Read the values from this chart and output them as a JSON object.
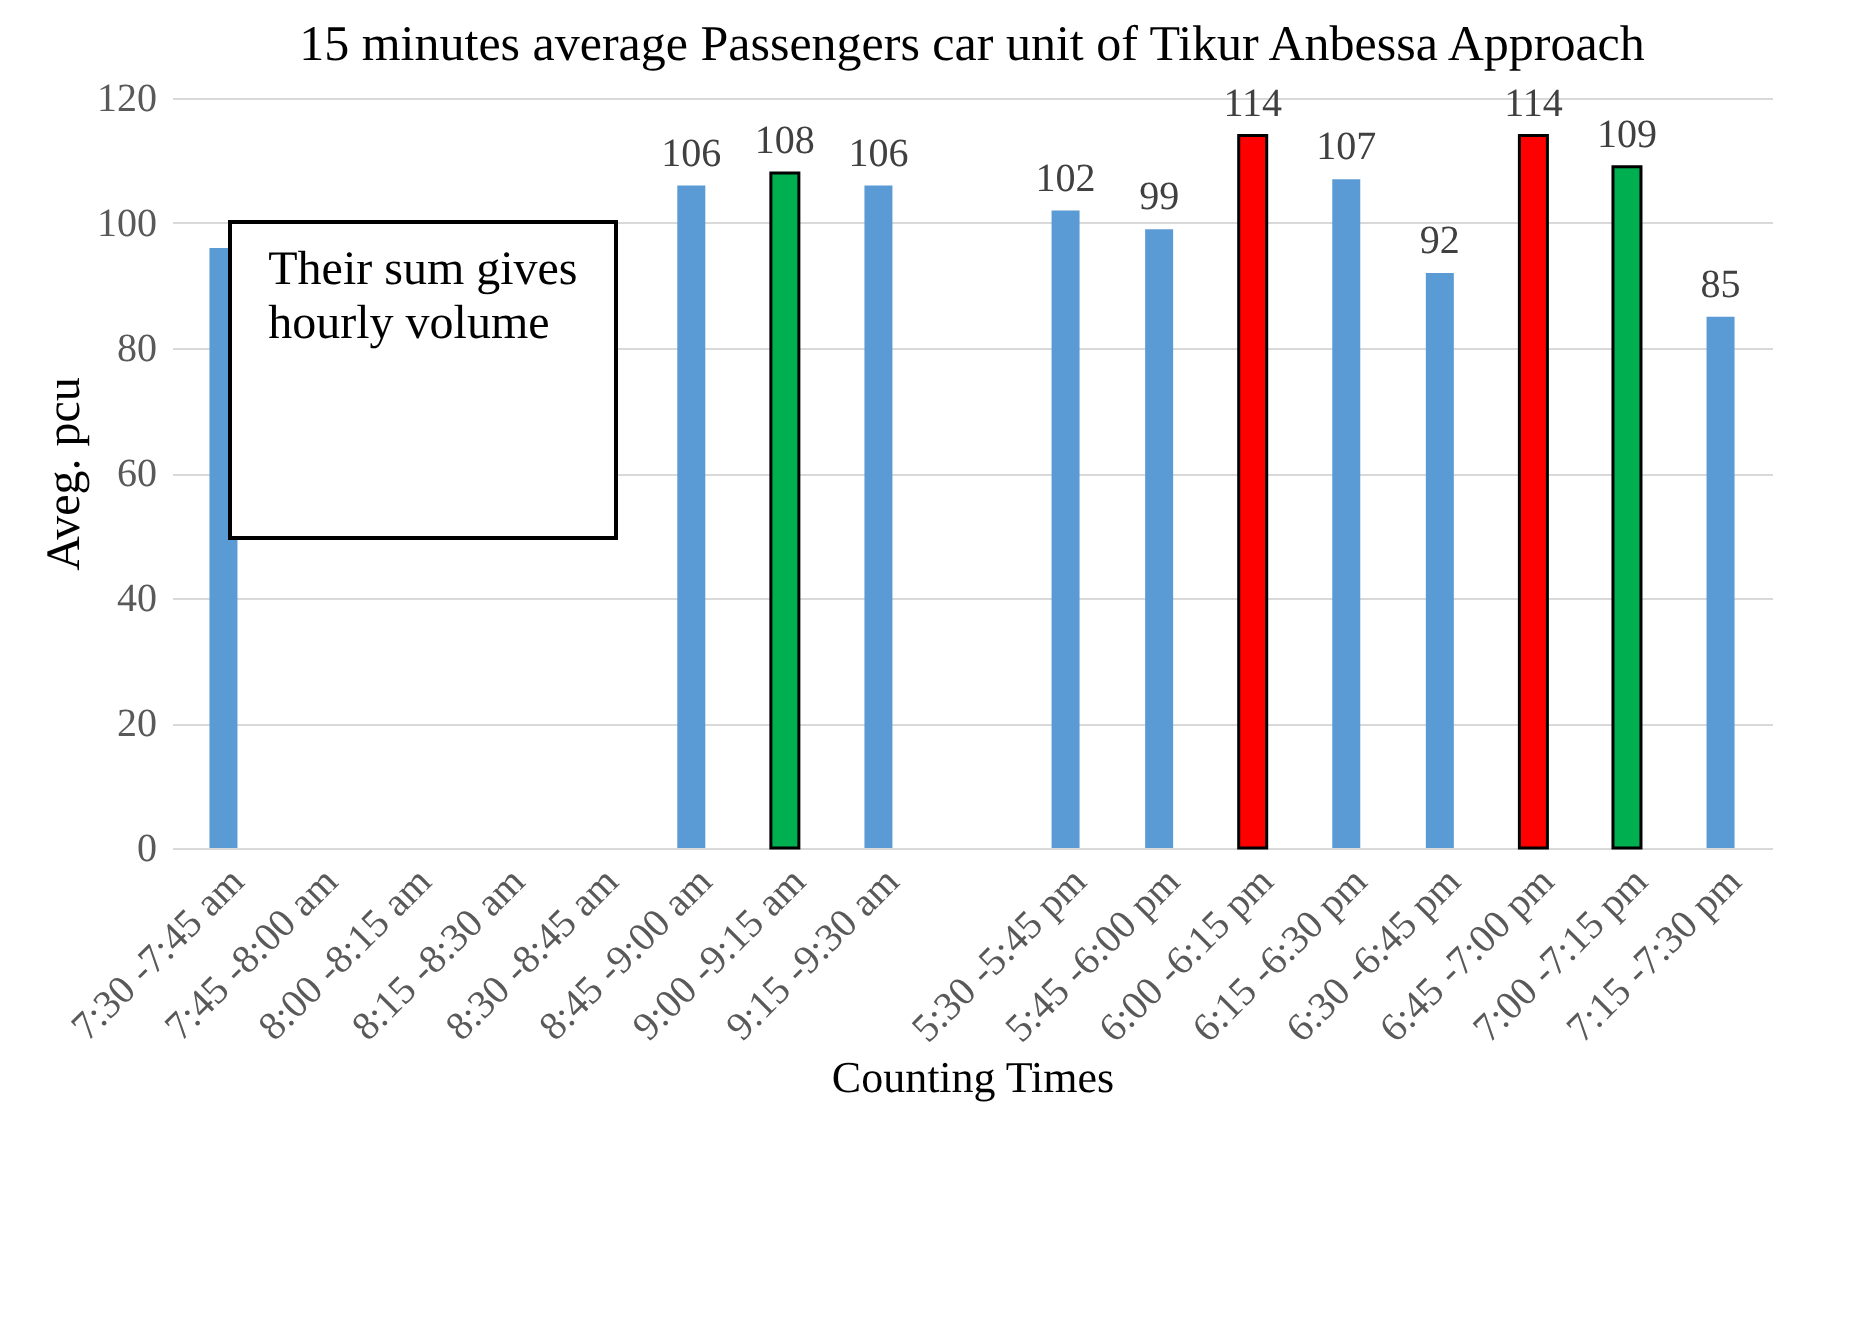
{
  "chart_data": {
    "type": "bar",
    "title": "15 minutes average Passengers car unit of Tikur Anbessa Approach",
    "xlabel": "Counting Times",
    "ylabel": "Aveg. pcu",
    "categories": [
      "7:30 -7:45 am",
      "7:45 -8:00 am",
      "8:00 -8:15 am",
      "8:15 -8:30 am",
      "8:30 -8:45 am",
      "8:45 -9:00 am",
      "9:00 -9:15 am",
      "9:15 -9:30 am",
      null,
      "5:30 -5:45 pm",
      "5:45 -6:00 pm",
      "6:00 -6:15 pm",
      "6:15 -6:30 pm",
      "6:30 -6:45 pm",
      "6:45 -7:00 pm",
      "7:00 -7:15 pm",
      "7:15 -7:30 pm"
    ],
    "values": [
      96,
      null,
      null,
      null,
      null,
      106,
      108,
      106,
      null,
      102,
      99,
      114,
      107,
      92,
      114,
      109,
      85
    ],
    "value_labels": [
      null,
      null,
      null,
      null,
      null,
      "106",
      "108",
      "106",
      null,
      "102",
      "99",
      "114",
      "107",
      "92",
      "114",
      "109",
      "85"
    ],
    "colors": [
      "#5b9bd5",
      "#5b9bd5",
      "#5b9bd5",
      "#5b9bd5",
      "#5b9bd5",
      "#5b9bd5",
      "#00b050",
      "#5b9bd5",
      "#5b9bd5",
      "#5b9bd5",
      "#5b9bd5",
      "#ff0000",
      "#5b9bd5",
      "#5b9bd5",
      "#ff0000",
      "#00b050",
      "#5b9bd5"
    ],
    "ylim": [
      0,
      120
    ],
    "yticks": [
      0,
      20,
      40,
      60,
      80,
      100,
      120
    ],
    "grid": "y",
    "annotations": [
      "Their sum gives hourly volume"
    ]
  }
}
